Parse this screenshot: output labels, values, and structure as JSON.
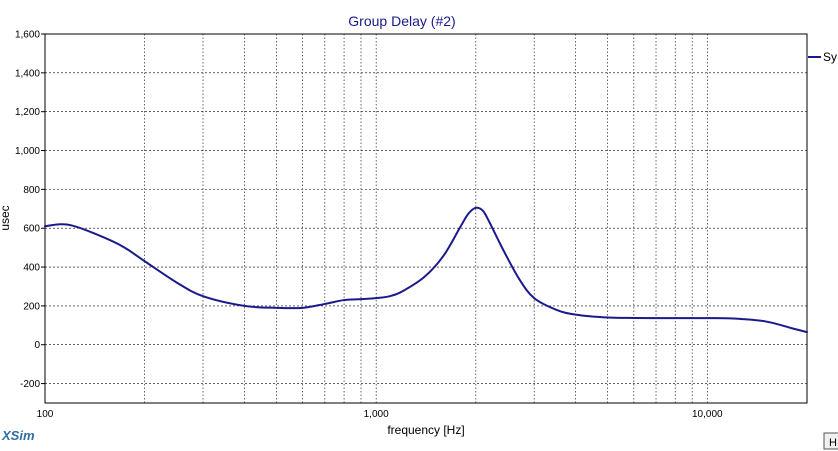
{
  "app": {
    "brand": "XSim",
    "corner_button_label": "H"
  },
  "colors": {
    "background": "#ffffff",
    "plot_background": "#ffffff",
    "axis": "#000000",
    "grid": "#000000",
    "series_line": "#1a1a8c",
    "title": "#1a1a8c",
    "brand": "#2f6fa5"
  },
  "chart_data": {
    "type": "line",
    "title": "Group Delay (#2)",
    "xlabel": "frequency [Hz]",
    "ylabel": "usec",
    "x_scale": "log",
    "xlim": [
      100,
      20000
    ],
    "ylim": [
      -300,
      1600
    ],
    "x_ticks": [
      {
        "value": 100,
        "label": "100"
      },
      {
        "value": 1000,
        "label": "1,000"
      },
      {
        "value": 10000,
        "label": "10,000"
      }
    ],
    "x_minor_ticks": [
      200,
      300,
      400,
      500,
      600,
      700,
      800,
      900,
      2000,
      3000,
      4000,
      5000,
      6000,
      7000,
      8000,
      9000
    ],
    "y_ticks": [
      {
        "value": 1600,
        "label": "1,600"
      },
      {
        "value": 1400,
        "label": "1,400"
      },
      {
        "value": 1200,
        "label": "1,200"
      },
      {
        "value": 1000,
        "label": "1,000"
      },
      {
        "value": 800,
        "label": "800"
      },
      {
        "value": 600,
        "label": "600"
      },
      {
        "value": 400,
        "label": "400"
      },
      {
        "value": 200,
        "label": "200"
      },
      {
        "value": 0,
        "label": "0"
      },
      {
        "value": -200,
        "label": "-200"
      }
    ],
    "grid": true,
    "legend": {
      "placement": "right",
      "entries": [
        "Sy"
      ]
    },
    "series": [
      {
        "name": "Sy",
        "x": [
          100,
          110,
          120,
          140,
          170,
          200,
          250,
          300,
          400,
          500,
          600,
          700,
          800,
          900,
          1000,
          1100,
          1200,
          1400,
          1600,
          1800,
          1900,
          2000,
          2100,
          2200,
          2400,
          2700,
          3000,
          3500,
          4000,
          5000,
          6000,
          8000,
          10000,
          12000,
          15000,
          18000,
          20000
        ],
        "y": [
          610,
          620,
          615,
          575,
          510,
          430,
          320,
          250,
          200,
          190,
          190,
          210,
          230,
          235,
          240,
          250,
          275,
          350,
          460,
          610,
          675,
          705,
          690,
          630,
          500,
          340,
          240,
          180,
          155,
          140,
          138,
          137,
          137,
          135,
          120,
          85,
          65
        ]
      }
    ]
  }
}
